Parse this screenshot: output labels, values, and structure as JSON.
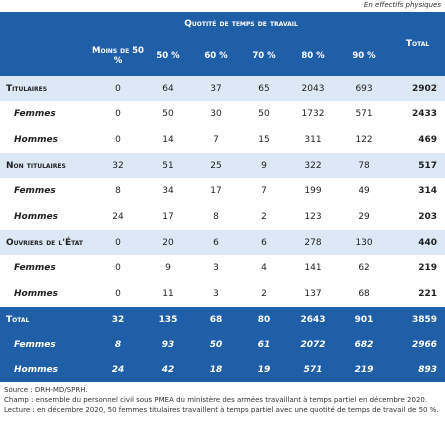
{
  "note": "En effectifs physiques",
  "header": {
    "group": "Quotité de temps de travail",
    "total": "Total",
    "columns": [
      "Moins de 50 %",
      "50 %",
      "60 %",
      "70 %",
      "80 %",
      "90 %"
    ]
  },
  "groups": [
    {
      "label": "Titulaires",
      "values": [
        0,
        64,
        37,
        65,
        2043,
        693,
        2902
      ],
      "sub": [
        {
          "label": "Femmes",
          "values": [
            0,
            50,
            30,
            50,
            1732,
            571,
            2433
          ]
        },
        {
          "label": "Hommes",
          "values": [
            0,
            14,
            7,
            15,
            311,
            122,
            469
          ]
        }
      ]
    },
    {
      "label": "Non titulaires",
      "values": [
        32,
        51,
        25,
        9,
        322,
        78,
        517
      ],
      "sub": [
        {
          "label": "Femmes",
          "values": [
            8,
            34,
            17,
            7,
            199,
            49,
            314
          ]
        },
        {
          "label": "Hommes",
          "values": [
            24,
            17,
            8,
            2,
            123,
            29,
            203
          ]
        }
      ]
    },
    {
      "label": "Ouvriers de l'État",
      "values": [
        0,
        20,
        6,
        6,
        278,
        130,
        440
      ],
      "sub": [
        {
          "label": "Femmes",
          "values": [
            0,
            9,
            3,
            4,
            141,
            62,
            219
          ]
        },
        {
          "label": "Hommes",
          "values": [
            0,
            11,
            3,
            2,
            137,
            68,
            221
          ]
        }
      ]
    }
  ],
  "total": {
    "label": "Total",
    "values": [
      32,
      135,
      68,
      80,
      2643,
      901,
      3859
    ],
    "sub": [
      {
        "label": "Femmes",
        "values": [
          8,
          93,
          50,
          61,
          2072,
          682,
          2966
        ]
      },
      {
        "label": "Hommes",
        "values": [
          24,
          42,
          18,
          19,
          571,
          219,
          893
        ]
      }
    ]
  },
  "footer": [
    "Source : DRH-MD/SPRH.",
    "Champ : ensemble du personnel civil sous PMEA du ministère des armées travaillant à temps partiel en décembre 2020.",
    "Lecture : en décembre 2020, 50 femmes titulaires travaillent à temps partiel avec une quotité de temps de travail de 50 %."
  ]
}
